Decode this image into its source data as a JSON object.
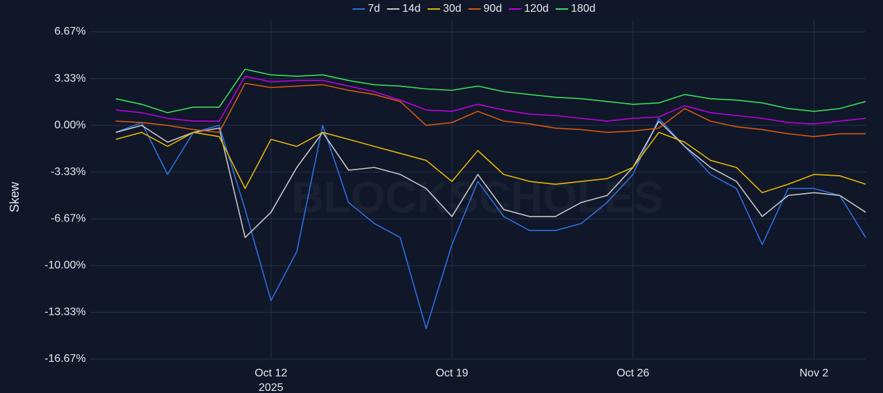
{
  "chart_data": {
    "type": "line",
    "y_label": "Skew",
    "watermark": "BLOCKSCHOLES",
    "legend": "top",
    "grid": true,
    "x": [
      "2025-10-06",
      "2025-10-07",
      "2025-10-08",
      "2025-10-09",
      "2025-10-10",
      "2025-10-11",
      "2025-10-12",
      "2025-10-13",
      "2025-10-14",
      "2025-10-15",
      "2025-10-16",
      "2025-10-17",
      "2025-10-18",
      "2025-10-19",
      "2025-10-20",
      "2025-10-21",
      "2025-10-22",
      "2025-10-23",
      "2025-10-24",
      "2025-10-25",
      "2025-10-26",
      "2025-10-27",
      "2025-10-28",
      "2025-10-29",
      "2025-10-30",
      "2025-10-31",
      "2025-11-01",
      "2025-11-02",
      "2025-11-03",
      "2025-11-04"
    ],
    "xlim": [
      "2025-10-05",
      "2025-11-04"
    ],
    "xticks": [
      {
        "value": "2025-10-12",
        "label": "Oct 12"
      },
      {
        "value": "2025-10-19",
        "label": "Oct 19"
      },
      {
        "value": "2025-10-26",
        "label": "Oct 26"
      },
      {
        "value": "2025-11-02",
        "label": "Nov 2"
      }
    ],
    "xtick_year": "2025",
    "ylim": [
      -16.67,
      6.67
    ],
    "yticks": [
      {
        "value": -16.67,
        "label": "-16.67%"
      },
      {
        "value": -13.33,
        "label": "-13.33%"
      },
      {
        "value": -10,
        "label": "-10.00%"
      },
      {
        "value": -6.67,
        "label": "-6.67%"
      },
      {
        "value": -3.33,
        "label": "-3.33%"
      },
      {
        "value": 0,
        "label": "0.00%"
      },
      {
        "value": 3.33,
        "label": "3.33%"
      },
      {
        "value": 6.67,
        "label": "6.67%"
      }
    ],
    "series": [
      {
        "name": "7d",
        "color": "#2f6fe0",
        "values": [
          -0.5,
          0.2,
          -3.5,
          -0.5,
          0.0,
          -6.0,
          -12.5,
          -9.0,
          0.0,
          -5.5,
          -7.0,
          -8.0,
          -14.5,
          -8.5,
          -4.0,
          -6.5,
          -7.5,
          -7.5,
          -7.0,
          -5.5,
          -3.5,
          0.5,
          -1.5,
          -3.5,
          -4.5,
          -8.5,
          -4.5,
          -4.5,
          -5.0,
          -8.0
        ]
      },
      {
        "name": "14d",
        "color": "#c8c8c8",
        "values": [
          -0.5,
          0.0,
          -1.2,
          -0.5,
          -0.2,
          -8.0,
          -6.2,
          -3.0,
          -0.5,
          -3.2,
          -3.0,
          -3.5,
          -4.5,
          -6.5,
          -3.5,
          -6.0,
          -6.5,
          -6.5,
          -5.5,
          -5.0,
          -3.0,
          0.3,
          -1.5,
          -3.0,
          -4.0,
          -6.5,
          -5.0,
          -4.8,
          -5.0,
          -6.2
        ]
      },
      {
        "name": "30d",
        "color": "#e8b600",
        "values": [
          -1.0,
          -0.5,
          -1.5,
          -0.5,
          -0.8,
          -4.5,
          -1.0,
          -1.5,
          -0.5,
          -1.0,
          -1.5,
          -2.0,
          -2.5,
          -4.0,
          -1.8,
          -3.5,
          -4.0,
          -4.2,
          -4.0,
          -3.8,
          -3.0,
          -0.5,
          -1.2,
          -2.5,
          -3.0,
          -4.8,
          -4.2,
          -3.5,
          -3.6,
          -4.2
        ]
      },
      {
        "name": "90d",
        "color": "#d9580e",
        "values": [
          0.3,
          0.2,
          0.0,
          -0.3,
          -0.5,
          3.0,
          2.7,
          2.8,
          2.9,
          2.5,
          2.2,
          1.7,
          0.0,
          0.2,
          1.0,
          0.3,
          0.1,
          -0.2,
          -0.3,
          -0.5,
          -0.4,
          -0.2,
          1.2,
          0.3,
          -0.1,
          -0.3,
          -0.6,
          -0.8,
          -0.6,
          -0.6
        ]
      },
      {
        "name": "120d",
        "color": "#c000e0",
        "values": [
          1.1,
          0.9,
          0.5,
          0.3,
          0.3,
          3.5,
          3.1,
          3.2,
          3.2,
          2.8,
          2.4,
          1.8,
          1.1,
          1.0,
          1.5,
          1.1,
          0.8,
          0.7,
          0.5,
          0.3,
          0.5,
          0.6,
          1.4,
          0.9,
          0.7,
          0.5,
          0.2,
          0.1,
          0.3,
          0.5
        ]
      },
      {
        "name": "180d",
        "color": "#3ddc5a",
        "values": [
          1.9,
          1.5,
          0.9,
          1.3,
          1.3,
          4.0,
          3.6,
          3.5,
          3.6,
          3.2,
          2.9,
          2.8,
          2.6,
          2.5,
          2.8,
          2.4,
          2.2,
          2.0,
          1.9,
          1.7,
          1.5,
          1.6,
          2.2,
          1.9,
          1.8,
          1.6,
          1.2,
          1.0,
          1.2,
          1.7
        ]
      }
    ]
  }
}
